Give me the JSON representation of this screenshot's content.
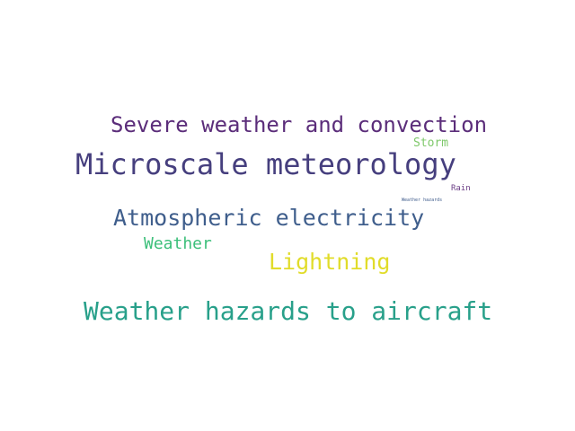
{
  "words": [
    {
      "text": "Severe weather and convection",
      "color": "#5b2d7a"
    },
    {
      "text": "Storm",
      "color": "#7ec86a"
    },
    {
      "text": "Microscale meteorology",
      "color": "#463f7e"
    },
    {
      "text": "Rain",
      "color": "#6a3d85"
    },
    {
      "text": "Weather hazards",
      "color": "#3d5a8a"
    },
    {
      "text": "Atmospheric electricity",
      "color": "#3f5e8c"
    },
    {
      "text": "Weather",
      "color": "#3cbf7a"
    },
    {
      "text": "Lightning",
      "color": "#e1dc2a"
    },
    {
      "text": "Weather hazards to aircraft",
      "color": "#28a08a"
    }
  ]
}
